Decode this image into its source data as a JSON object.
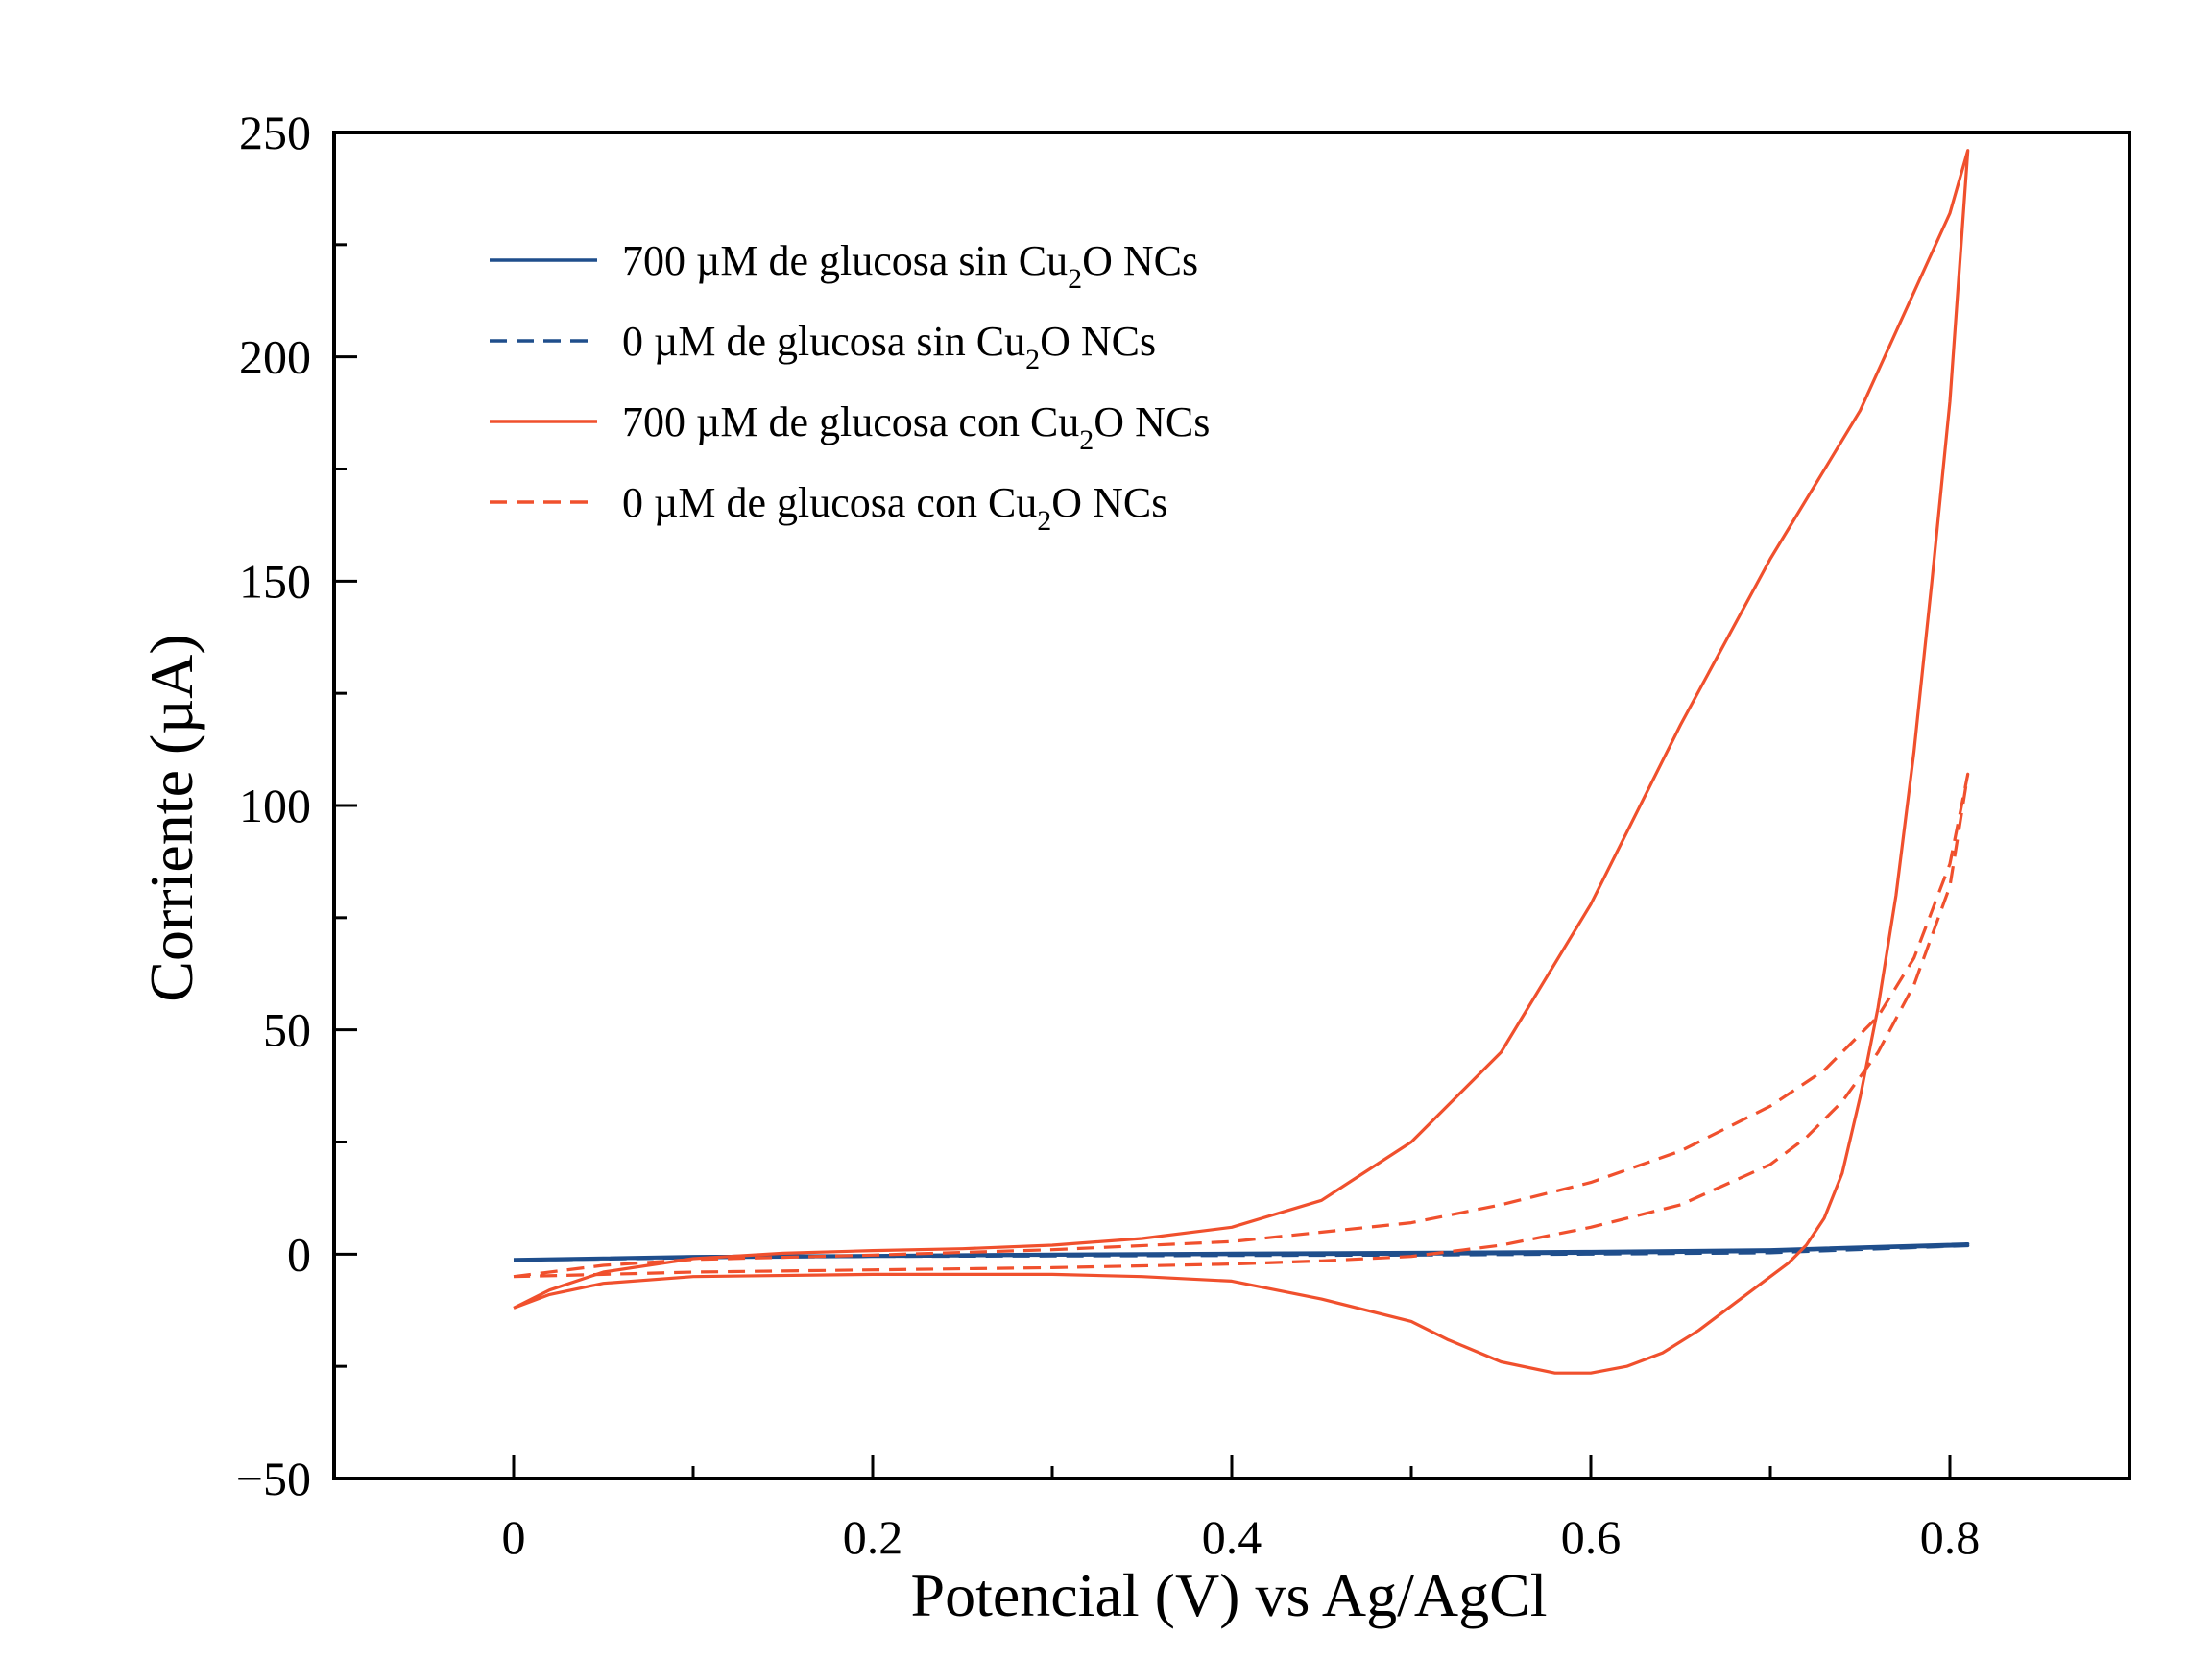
{
  "chart_data": {
    "type": "line",
    "title": "",
    "xlabel": "Potencial (V) vs Ag/AgCl",
    "ylabel": "Corriente (µA)",
    "xlim": [
      -0.1,
      0.9
    ],
    "ylim": [
      -50,
      250
    ],
    "x_ticks": [
      0,
      0.2,
      0.4,
      0.6,
      0.8
    ],
    "x_tick_labels": [
      "0",
      "0.2",
      "0.4",
      "0.6",
      "0.8"
    ],
    "x_minor_ticks": [
      0.1,
      0.3,
      0.5,
      0.7
    ],
    "y_ticks": [
      -50,
      0,
      50,
      100,
      150,
      200,
      250
    ],
    "y_tick_labels": [
      "−50",
      "0",
      "50",
      "100",
      "150",
      "200",
      "250"
    ],
    "y_minor_ticks": [
      -25,
      25,
      75,
      125,
      175,
      225
    ],
    "grid": false,
    "legend_position": "top-left",
    "series": [
      {
        "name_main": "700 µM de glucosa sin Cu",
        "name_sub": "2",
        "name_tail": "O NCs",
        "color": "#1f4e8c",
        "dash": "solid",
        "points": [
          [
            0,
            -1.2
          ],
          [
            0.1,
            -0.5
          ],
          [
            0.2,
            -0.3
          ],
          [
            0.3,
            0.0
          ],
          [
            0.4,
            0.2
          ],
          [
            0.5,
            0.4
          ],
          [
            0.6,
            0.6
          ],
          [
            0.7,
            1.0
          ],
          [
            0.81,
            2.3
          ],
          [
            0.7,
            0.6
          ],
          [
            0.6,
            0.2
          ],
          [
            0.5,
            0.0
          ],
          [
            0.4,
            -0.1
          ],
          [
            0.3,
            -0.2
          ],
          [
            0.2,
            -0.3
          ],
          [
            0.1,
            -0.6
          ],
          [
            0,
            -1.2
          ]
        ]
      },
      {
        "name_main": "0 µM de glucosa sin Cu",
        "name_sub": "2",
        "name_tail": "O NCs",
        "color": "#1f4e8c",
        "dash": "dashed",
        "points": [
          [
            0,
            -1.4
          ],
          [
            0.1,
            -0.7
          ],
          [
            0.2,
            -0.5
          ],
          [
            0.3,
            -0.2
          ],
          [
            0.4,
            0.0
          ],
          [
            0.5,
            0.2
          ],
          [
            0.6,
            0.4
          ],
          [
            0.7,
            0.8
          ],
          [
            0.81,
            1.9
          ],
          [
            0.7,
            0.3
          ],
          [
            0.6,
            0.0
          ],
          [
            0.5,
            -0.2
          ],
          [
            0.4,
            -0.3
          ],
          [
            0.3,
            -0.4
          ],
          [
            0.2,
            -0.5
          ],
          [
            0.1,
            -0.8
          ],
          [
            0,
            -1.4
          ]
        ]
      },
      {
        "name_main": "700 µM de glucosa con Cu",
        "name_sub": "2",
        "name_tail": "O NCs",
        "color": "#f0502d",
        "dash": "solid",
        "points": [
          [
            0,
            -12
          ],
          [
            0.02,
            -8
          ],
          [
            0.05,
            -4
          ],
          [
            0.1,
            -1
          ],
          [
            0.15,
            0.2
          ],
          [
            0.2,
            0.8
          ],
          [
            0.25,
            1.2
          ],
          [
            0.3,
            2.0
          ],
          [
            0.35,
            3.5
          ],
          [
            0.4,
            6
          ],
          [
            0.45,
            12
          ],
          [
            0.5,
            25
          ],
          [
            0.55,
            45
          ],
          [
            0.6,
            78
          ],
          [
            0.65,
            118
          ],
          [
            0.7,
            155
          ],
          [
            0.75,
            188
          ],
          [
            0.8,
            232
          ],
          [
            0.81,
            246
          ],
          [
            0.8,
            190
          ],
          [
            0.79,
            150
          ],
          [
            0.78,
            112
          ],
          [
            0.77,
            80
          ],
          [
            0.76,
            55
          ],
          [
            0.75,
            35
          ],
          [
            0.74,
            18
          ],
          [
            0.73,
            8
          ],
          [
            0.72,
            2
          ],
          [
            0.71,
            -2
          ],
          [
            0.7,
            -5
          ],
          [
            0.68,
            -11
          ],
          [
            0.66,
            -17
          ],
          [
            0.64,
            -22
          ],
          [
            0.62,
            -25
          ],
          [
            0.6,
            -26.5
          ],
          [
            0.58,
            -26.5
          ],
          [
            0.55,
            -24
          ],
          [
            0.52,
            -19
          ],
          [
            0.5,
            -15
          ],
          [
            0.45,
            -10
          ],
          [
            0.4,
            -6
          ],
          [
            0.35,
            -5
          ],
          [
            0.3,
            -4.5
          ],
          [
            0.2,
            -4.5
          ],
          [
            0.1,
            -5
          ],
          [
            0.05,
            -6.5
          ],
          [
            0.02,
            -9
          ],
          [
            0,
            -12
          ]
        ]
      },
      {
        "name_main": "0 µM de glucosa con Cu",
        "name_sub": "2",
        "name_tail": "O NCs",
        "color": "#f0502d",
        "dash": "dashed",
        "points": [
          [
            0,
            -5
          ],
          [
            0.05,
            -2.5
          ],
          [
            0.1,
            -1.2
          ],
          [
            0.2,
            -0.2
          ],
          [
            0.3,
            1.0
          ],
          [
            0.4,
            2.8
          ],
          [
            0.5,
            7
          ],
          [
            0.55,
            11
          ],
          [
            0.6,
            16
          ],
          [
            0.65,
            23
          ],
          [
            0.7,
            33
          ],
          [
            0.73,
            41
          ],
          [
            0.76,
            53
          ],
          [
            0.78,
            66
          ],
          [
            0.8,
            87
          ],
          [
            0.81,
            107
          ],
          [
            0.8,
            82
          ],
          [
            0.78,
            60
          ],
          [
            0.76,
            45
          ],
          [
            0.74,
            34
          ],
          [
            0.72,
            26
          ],
          [
            0.7,
            20
          ],
          [
            0.65,
            11
          ],
          [
            0.6,
            6
          ],
          [
            0.55,
            2
          ],
          [
            0.5,
            -0.5
          ],
          [
            0.45,
            -1.5
          ],
          [
            0.4,
            -2.2
          ],
          [
            0.3,
            -3
          ],
          [
            0.2,
            -3.5
          ],
          [
            0.1,
            -4
          ],
          [
            0.05,
            -4.5
          ],
          [
            0,
            -5
          ]
        ]
      }
    ]
  }
}
